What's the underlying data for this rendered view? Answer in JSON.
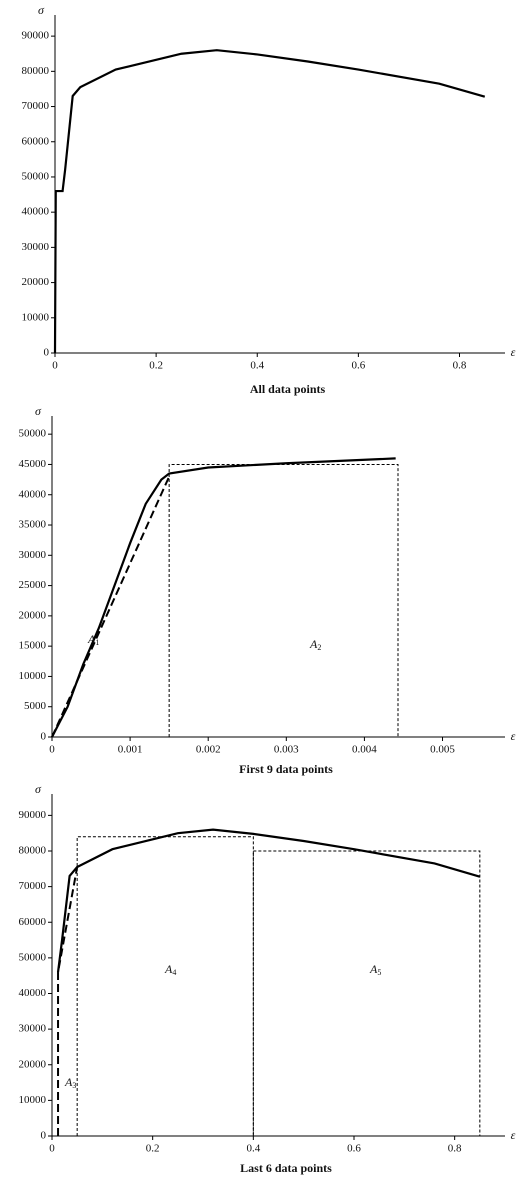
{
  "chart_data": [
    {
      "type": "line",
      "title": "All data points",
      "xlabel": "ε",
      "ylabel": "σ",
      "xlim": [
        0,
        0.89
      ],
      "ylim": [
        0,
        96000
      ],
      "xticks": [
        0,
        0.2,
        0.4,
        0.6,
        0.8
      ],
      "yticks": [
        0,
        10000,
        20000,
        30000,
        40000,
        50000,
        60000,
        70000,
        80000,
        90000
      ],
      "series": [
        {
          "color": "#000000",
          "style": "solid",
          "x": [
            0,
            0.0015,
            0.015,
            0.02,
            0.035,
            0.05,
            0.12,
            0.25,
            0.32,
            0.4,
            0.5,
            0.6,
            0.76,
            0.85
          ],
          "values": [
            0,
            46000,
            46000,
            52000,
            73000,
            75500,
            80500,
            85000,
            86000,
            84800,
            82800,
            80500,
            76500,
            72800
          ]
        }
      ],
      "rects": [],
      "annotations": []
    },
    {
      "type": "line",
      "title": "First 9 data points",
      "xlabel": "ε",
      "ylabel": "σ",
      "xlim": [
        0,
        0.0058
      ],
      "ylim": [
        0,
        53000
      ],
      "xticks": [
        0,
        0.001,
        0.002,
        0.003,
        0.004,
        0.005
      ],
      "yticks": [
        0,
        5000,
        10000,
        15000,
        20000,
        25000,
        30000,
        35000,
        40000,
        45000,
        50000
      ],
      "series": [
        {
          "color": "#000000",
          "style": "solid",
          "x": [
            0,
            0.0002,
            0.0004,
            0.0006,
            0.0008,
            0.001,
            0.0012,
            0.0014,
            0.0015,
            0.002,
            0.003,
            0.0044
          ],
          "values": [
            0,
            5000,
            12000,
            18000,
            25000,
            32000,
            38500,
            42500,
            43500,
            44500,
            45200,
            46000
          ]
        },
        {
          "color": "#000000",
          "style": "dashed",
          "x": [
            0,
            0.0015
          ],
          "values": [
            0,
            43000
          ]
        }
      ],
      "rects": [
        {
          "x0": 0.0015,
          "x1": 0.00443,
          "height": 45000
        }
      ],
      "annotations": [
        {
          "label": "A",
          "subscript": "1"
        },
        {
          "label": "A",
          "subscript": "2"
        }
      ]
    },
    {
      "type": "line",
      "title": "Last 6 data points",
      "xlabel": "ε",
      "ylabel": "σ",
      "xlim": [
        0,
        0.9
      ],
      "ylim": [
        0,
        96000
      ],
      "xticks": [
        0,
        0.2,
        0.4,
        0.6,
        0.8
      ],
      "yticks": [
        0,
        10000,
        20000,
        30000,
        40000,
        50000,
        60000,
        70000,
        80000,
        90000
      ],
      "series": [
        {
          "color": "#000000",
          "style": "solid",
          "x": [
            0.012,
            0.02,
            0.035,
            0.05,
            0.12,
            0.25,
            0.32,
            0.4,
            0.5,
            0.6,
            0.76,
            0.85
          ],
          "values": [
            46000,
            55000,
            73000,
            75500,
            80500,
            85000,
            86000,
            84800,
            82800,
            80500,
            76500,
            72800
          ]
        },
        {
          "color": "#000000",
          "style": "dashed",
          "x": [
            0.012,
            0.012,
            0.05
          ],
          "values": [
            0,
            46000,
            75500
          ]
        }
      ],
      "rects": [
        {
          "x0": 0.05,
          "x1": 0.4,
          "height": 84000
        },
        {
          "x0": 0.4,
          "x1": 0.85,
          "height": 80000
        }
      ],
      "annotations": [
        {
          "label": "A",
          "subscript": "3"
        },
        {
          "label": "A",
          "subscript": "4"
        },
        {
          "label": "A",
          "subscript": "5"
        }
      ]
    }
  ]
}
